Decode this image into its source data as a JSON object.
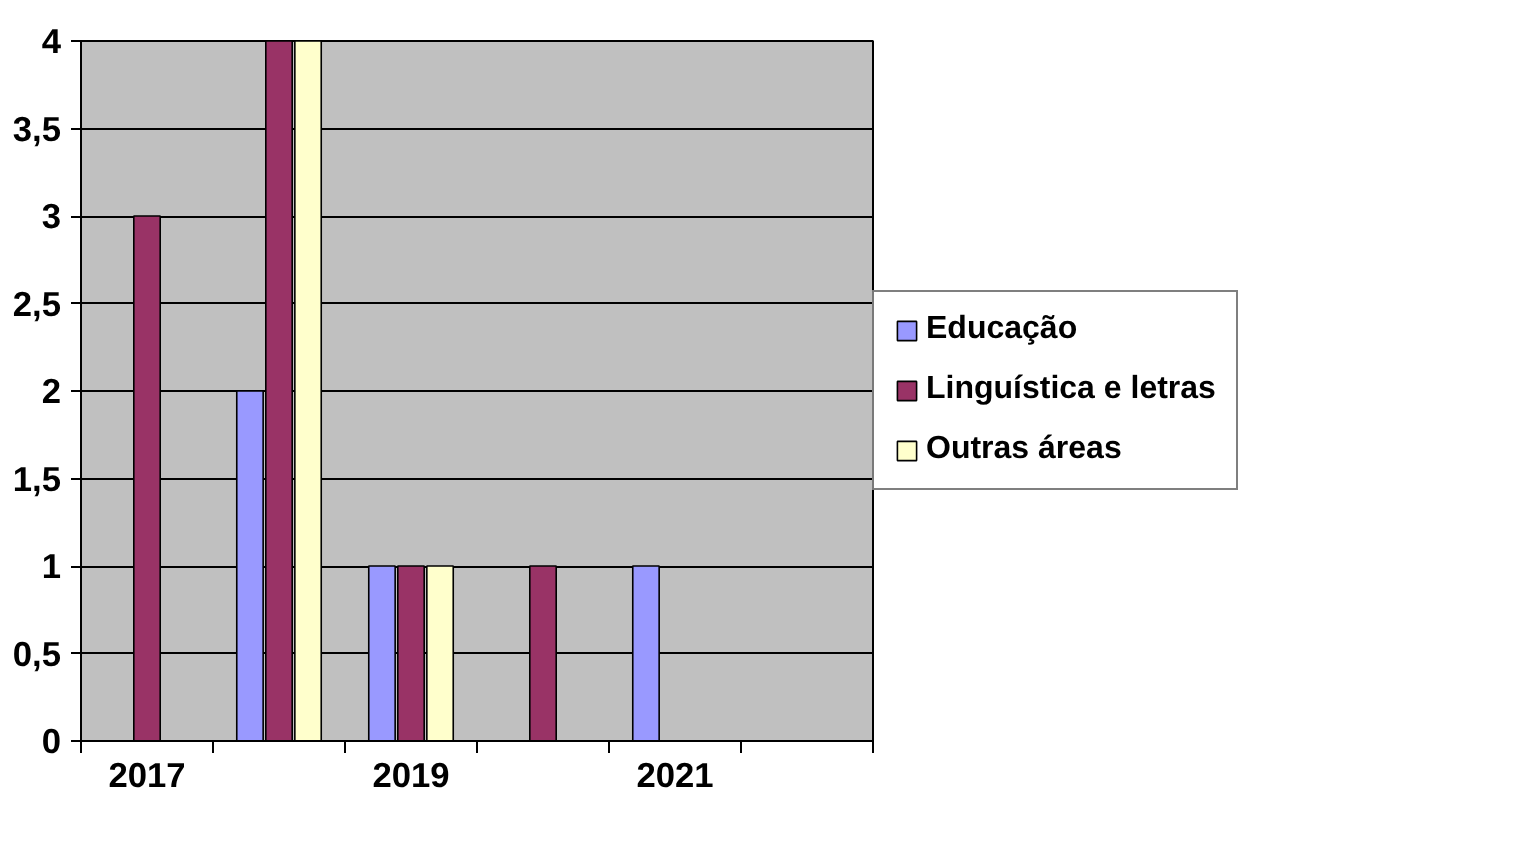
{
  "chart_data": {
    "type": "bar",
    "categories": [
      "2017",
      null,
      "2019",
      null,
      "2021",
      null
    ],
    "series": [
      {
        "name": "Educação",
        "color": "#9999ff",
        "values": [
          0,
          2,
          1,
          0,
          1,
          0
        ]
      },
      {
        "name": "Linguística e letras",
        "color": "#993366",
        "values": [
          3,
          4,
          1,
          1,
          0,
          0
        ]
      },
      {
        "name": "Outras áreas",
        "color": "#ffffcc",
        "values": [
          0,
          4,
          1,
          0,
          0,
          0
        ]
      }
    ],
    "ylim": [
      0,
      4
    ],
    "yticks": [
      0,
      {
        "value": 0.5,
        "label": "0,5"
      },
      1,
      {
        "value": 1.5,
        "label": "1,5"
      },
      2,
      {
        "value": 2.5,
        "label": "2,5"
      },
      3,
      {
        "value": 3.5,
        "label": "3,5"
      },
      4
    ],
    "grid": "y",
    "legend": "right"
  }
}
